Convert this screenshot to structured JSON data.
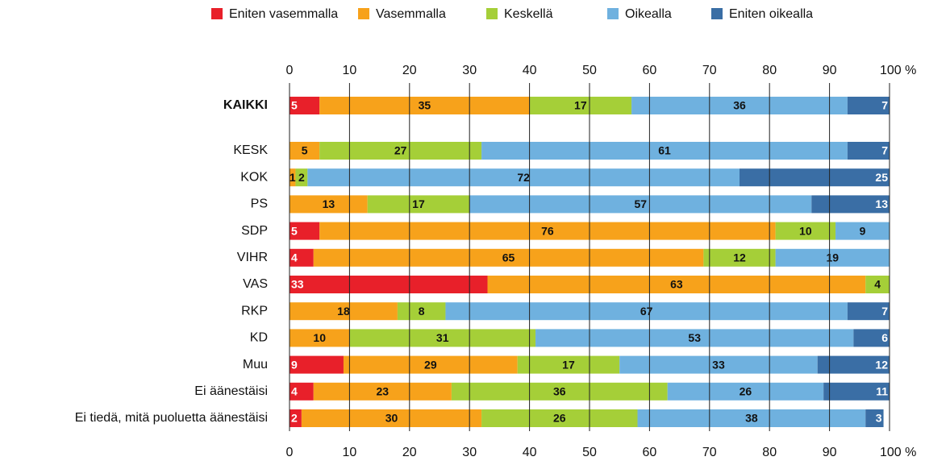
{
  "chart_data": {
    "type": "stacked_barh",
    "categories": [
      "KAIKKI",
      "KESK",
      "KOK",
      "PS",
      "SDP",
      "VIHR",
      "VAS",
      "RKP",
      "KD",
      "Muu",
      "Ei äänestäisi",
      "Ei tiedä, mitä puoluetta äänestäisi"
    ],
    "series": [
      {
        "name": "Eniten vasemmalla",
        "color": "#e8202a",
        "values": [
          5,
          null,
          null,
          null,
          5,
          4,
          33,
          null,
          null,
          9,
          4,
          2
        ]
      },
      {
        "name": "Vasemmalla",
        "color": "#f7a21b",
        "values": [
          35,
          5,
          1,
          13,
          76,
          65,
          63,
          18,
          10,
          29,
          23,
          30
        ]
      },
      {
        "name": "Keskellä",
        "color": "#a5cf38",
        "values": [
          17,
          27,
          2,
          17,
          10,
          12,
          4,
          8,
          31,
          17,
          36,
          26
        ]
      },
      {
        "name": "Oikealla",
        "color": "#6fb1df",
        "values": [
          36,
          61,
          72,
          57,
          9,
          19,
          null,
          67,
          53,
          33,
          26,
          38
        ]
      },
      {
        "name": "Eniten oikealla",
        "color": "#3a6ea5",
        "values": [
          7,
          7,
          25,
          13,
          null,
          null,
          null,
          7,
          6,
          12,
          11,
          3
        ]
      }
    ],
    "xlim": [
      0,
      100
    ],
    "xticks": [
      0,
      10,
      20,
      30,
      40,
      50,
      60,
      70,
      80,
      90,
      {
        "value": 100,
        "label": "100 %"
      }
    ],
    "grid": true,
    "legend": "top"
  }
}
